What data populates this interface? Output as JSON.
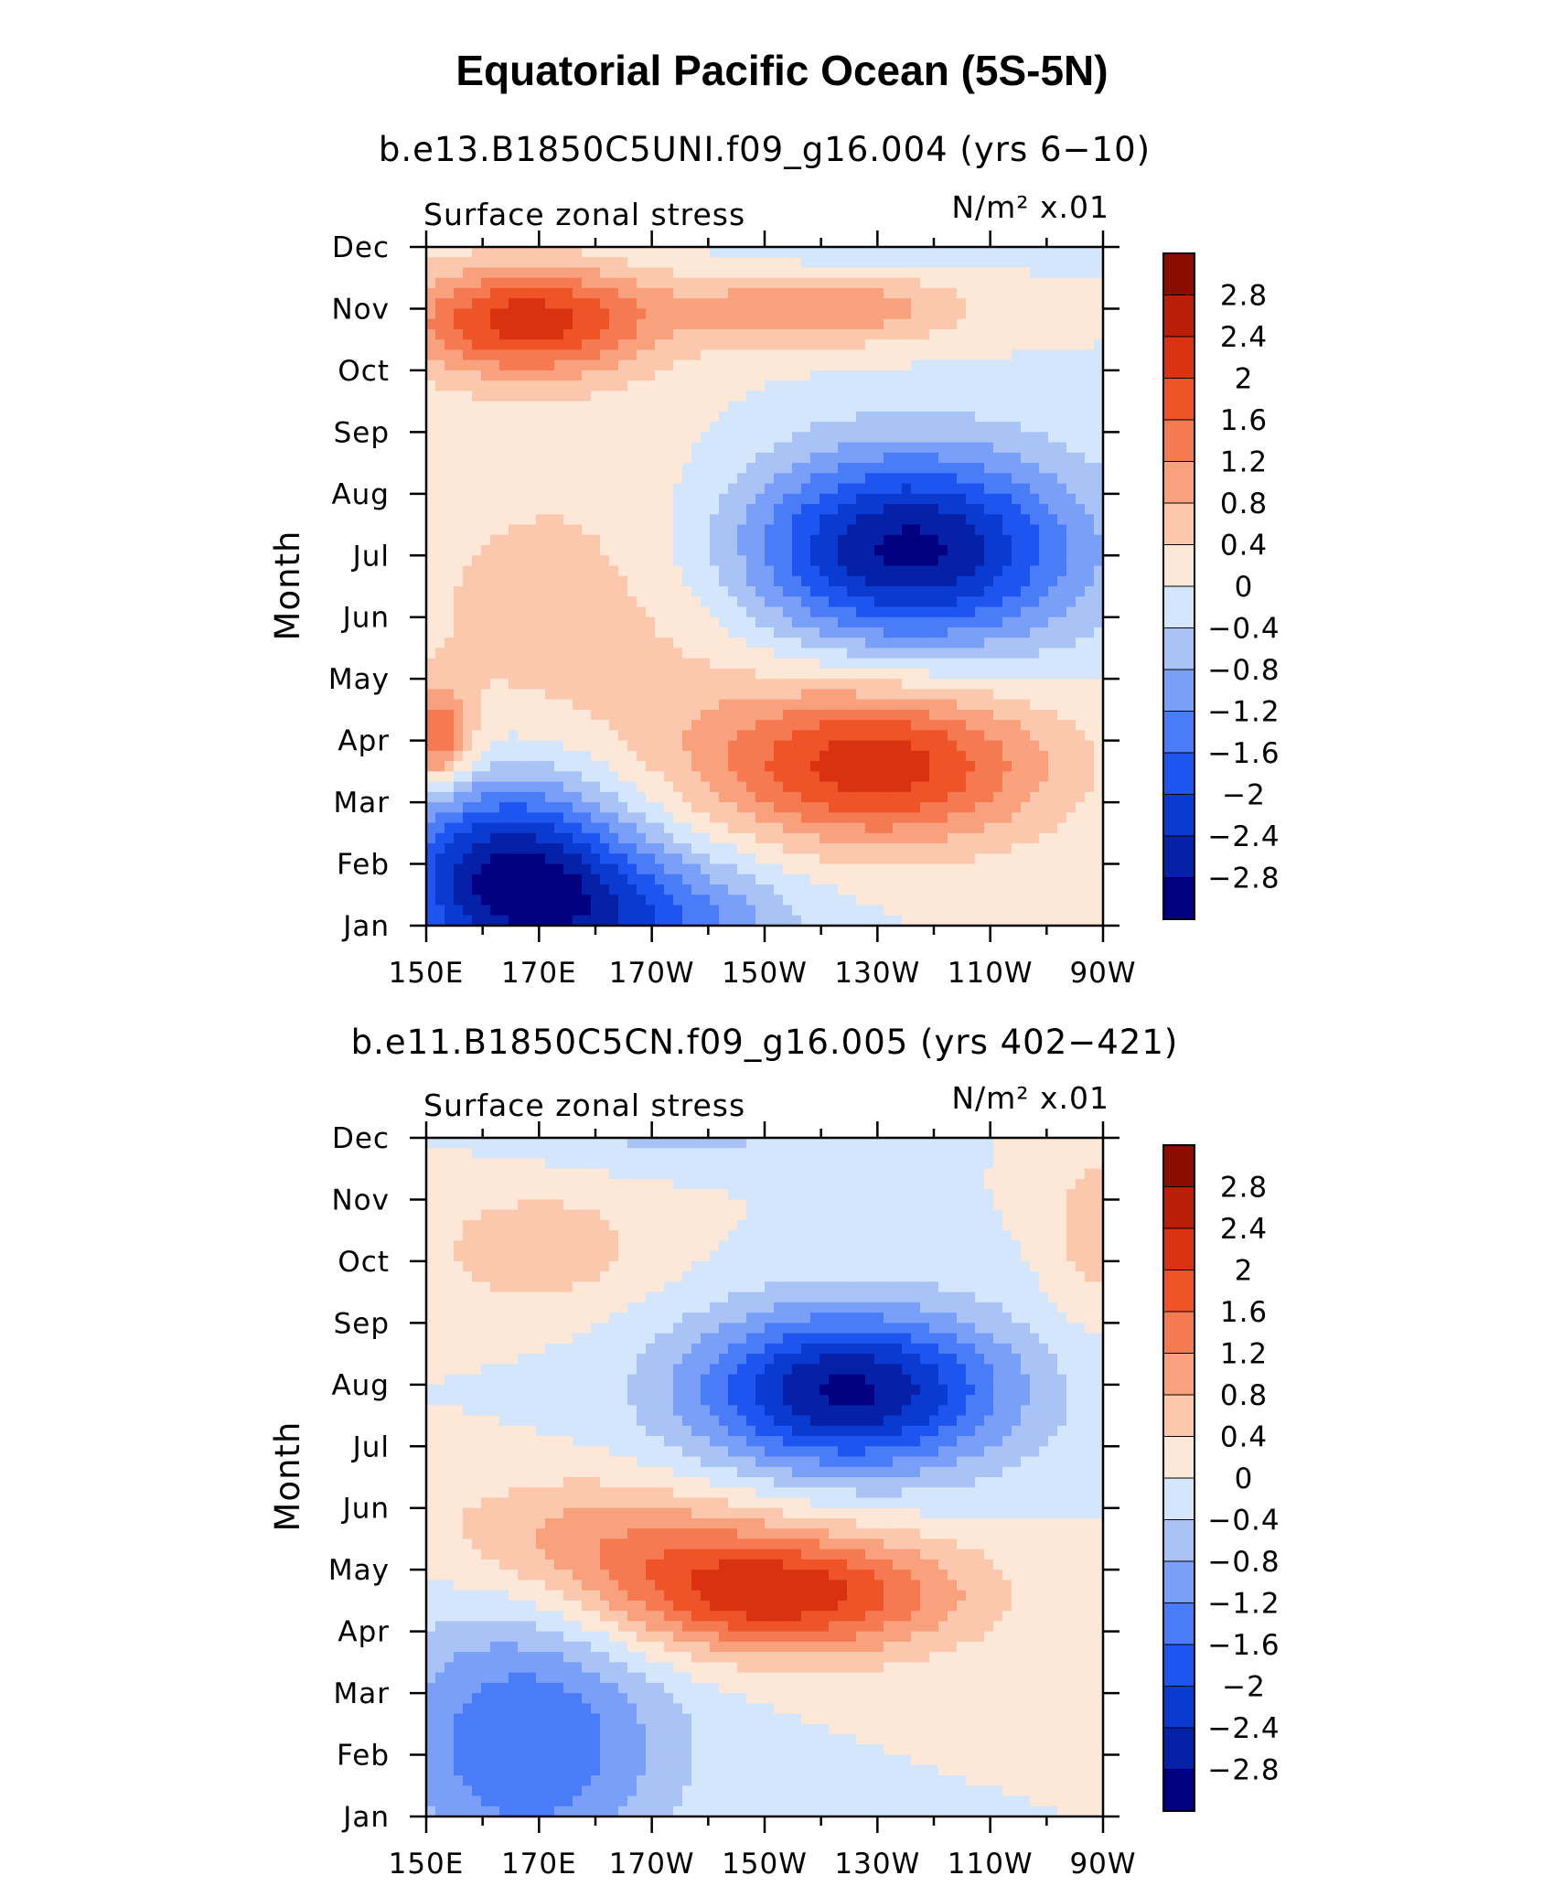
{
  "figure_title": "Equatorial Pacific Ocean (5S-5N)",
  "colors": {
    "palette": [
      "#000080",
      "#0521a8",
      "#0a3ad0",
      "#1e55f0",
      "#4b7cf8",
      "#7a9ff8",
      "#a9c3f6",
      "#d4e6fb",
      "#fde7d6",
      "#fbc8ad",
      "#f9a07d",
      "#f57a52",
      "#ef5328",
      "#d83210",
      "#b81e08",
      "#8c0c00"
    ]
  },
  "chart_data": [
    {
      "type": "heatmap",
      "title": "b.e13.B1850C5UNI.f09_g16.004 (yrs 6−10)",
      "left_label": "Surface zonal stress",
      "right_label": "N/m² x.01",
      "ylabel": "Month",
      "x_ticks": [
        "150E",
        "170E",
        "170W",
        "150W",
        "130W",
        "110W",
        "90W"
      ],
      "y_ticks": [
        "Jan",
        "Feb",
        "Mar",
        "Apr",
        "May",
        "Jun",
        "Jul",
        "Aug",
        "Sep",
        "Oct",
        "Nov",
        "Dec"
      ],
      "xlim": [
        150,
        270
      ],
      "ylim": [
        1,
        12
      ],
      "colorbar_levels": [
        "2.8",
        "2.4",
        "2",
        "1.6",
        "1.2",
        "0.8",
        "0.4",
        "0",
        "−0.4",
        "−0.8",
        "−1.2",
        "−1.6",
        "−2",
        "−2.4",
        "−2.8"
      ],
      "field_terms": [
        {
          "sign": "-",
          "amp": 2.9,
          "lon": 165,
          "month": 1.8,
          "lon_width": 22,
          "month_width": 1.6
        },
        {
          "sign": "-",
          "amp": 1.4,
          "lon": 190,
          "month": 1.0,
          "lon_width": 25,
          "month_width": 1.2
        },
        {
          "sign": "+",
          "amp": 2.2,
          "lon": 230,
          "month": 3.6,
          "lon_width": 30,
          "month_width": 1.3
        },
        {
          "sign": "-",
          "amp": 3.0,
          "lon": 235,
          "month": 7.1,
          "lon_width": 30,
          "month_width": 1.6
        },
        {
          "sign": "+",
          "amp": 2.2,
          "lon": 168,
          "month": 10.8,
          "lon_width": 22,
          "month_width": 0.9
        },
        {
          "sign": "+",
          "amp": 1.2,
          "lon": 220,
          "month": 11.0,
          "lon_width": 25,
          "month_width": 0.6
        },
        {
          "sign": "+",
          "amp": 0.6,
          "lon": 180,
          "month": 6.0,
          "lon_width": 40,
          "month_width": 3.0
        },
        {
          "sign": "+",
          "amp": 1.6,
          "lon": 152,
          "month": 4.0,
          "lon_width": 6,
          "month_width": 0.8
        },
        {
          "sign": "-",
          "amp": 0.5,
          "lon": 230,
          "month": 12.0,
          "lon_width": 25,
          "month_width": 0.4
        }
      ]
    },
    {
      "type": "heatmap",
      "title": "b.e11.B1850C5CN.f09_g16.005 (yrs 402−421)",
      "left_label": "Surface zonal stress",
      "right_label": "N/m² x.01",
      "ylabel": "Month",
      "x_ticks": [
        "150E",
        "170E",
        "170W",
        "150W",
        "130W",
        "110W",
        "90W"
      ],
      "y_ticks": [
        "Jan",
        "Feb",
        "Mar",
        "Apr",
        "May",
        "Jun",
        "Jul",
        "Aug",
        "Sep",
        "Oct",
        "Nov",
        "Dec"
      ],
      "xlim": [
        150,
        270
      ],
      "ylim": [
        1,
        12
      ],
      "colorbar_levels": [
        "2.8",
        "2.4",
        "2",
        "1.6",
        "1.2",
        "0.8",
        "0.4",
        "0",
        "−0.4",
        "−0.8",
        "−1.2",
        "−1.6",
        "−2",
        "−2.4",
        "−2.8"
      ],
      "field_terms": [
        {
          "sign": "-",
          "amp": 1.6,
          "lon": 168,
          "month": 2.2,
          "lon_width": 25,
          "month_width": 2.2
        },
        {
          "sign": "+",
          "amp": 2.3,
          "lon": 212,
          "month": 4.6,
          "lon_width": 32,
          "month_width": 1.0
        },
        {
          "sign": "+",
          "amp": 0.9,
          "lon": 180,
          "month": 5.6,
          "lon_width": 30,
          "month_width": 1.0
        },
        {
          "sign": "-",
          "amp": 2.9,
          "lon": 225,
          "month": 7.9,
          "lon_width": 28,
          "month_width": 1.3
        },
        {
          "sign": "+",
          "amp": 0.7,
          "lon": 170,
          "month": 10.2,
          "lon_width": 20,
          "month_width": 1.0
        },
        {
          "sign": "-",
          "amp": 0.5,
          "lon": 195,
          "month": 12.0,
          "lon_width": 25,
          "month_width": 0.5
        },
        {
          "sign": "+",
          "amp": 0.6,
          "lon": 268,
          "month": 10.5,
          "lon_width": 8,
          "month_width": 1.5
        }
      ]
    }
  ]
}
